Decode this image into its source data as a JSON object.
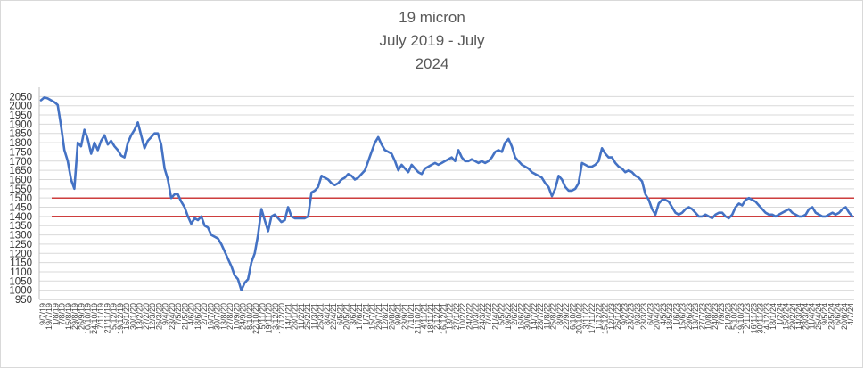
{
  "chart_data": {
    "type": "line",
    "title": [
      "19 micron",
      "July 2019 - July",
      "2024"
    ],
    "xlabel": "",
    "ylabel": "",
    "ylim": [
      950,
      2100
    ],
    "yticks": [
      950,
      1000,
      1050,
      1100,
      1150,
      1200,
      1250,
      1300,
      1350,
      1400,
      1450,
      1500,
      1550,
      1600,
      1650,
      1700,
      1750,
      1800,
      1850,
      1900,
      1950,
      2000,
      2050
    ],
    "grid": true,
    "legend": "none",
    "colors": {
      "series": "#4472c4",
      "reference_lines": "#c00000",
      "grid": "#d9d9d9"
    },
    "reference_lines": [
      {
        "y": 1500,
        "color": "#c00000"
      },
      {
        "y": 1400,
        "color": "#c00000"
      }
    ],
    "xtick_labels": [
      "9/7/19",
      "19/7/19",
      "1/8/19",
      "7/8/19",
      "15/8/19",
      "29/8/19",
      "26/9/19",
      "10/10/19",
      "24/10/19",
      "7/11/19",
      "21/11/19",
      "5/12/19",
      "19/12/19",
      "16/1/20",
      "30/1/20",
      "13/2/20",
      "27/2/20",
      "12/3/20",
      "26/3/20",
      "9/4/20",
      "23/4/20",
      "7/5/20",
      "21/5/20",
      "4/6/20",
      "18/6/20",
      "2/7/20",
      "16/7/20",
      "30/7/20",
      "13/8/20",
      "27/8/20",
      "10/9/20",
      "24/9/20",
      "8/10/20",
      "22/10/20",
      "5/11/20",
      "19/11/20",
      "3/12/20",
      "17/12/20",
      "14/1/21",
      "28/1/21",
      "11/2/21",
      "25/2/21",
      "11/3/21",
      "25/3/21",
      "8/4/21",
      "22/4/21",
      "6/5/21",
      "20/5/21",
      "3/6/21",
      "17/6/21",
      "1/7/21",
      "15/7/21",
      "29/7/21",
      "12/8/21",
      "26/8/21",
      "9/9/21",
      "23/9/21",
      "7/10/21",
      "21/10/21",
      "4/11/21",
      "18/11/21",
      "2/12/21",
      "16/12/21",
      "13/1/22",
      "27/1/22",
      "10/2/22",
      "24/2/22",
      "10/3/22",
      "24/3/22",
      "7/4/22",
      "21/4/22",
      "5/5/22",
      "19/5/22",
      "2/6/22",
      "16/6/22",
      "30/6/22",
      "14/7/22",
      "28/7/22",
      "11/8/22",
      "25/8/22",
      "8/9/22",
      "22/9/22",
      "6/10/22",
      "20/10/22",
      "3/11/22",
      "17/11/22",
      "1/12/22",
      "15/12/22",
      "12/1/23",
      "26/1/23",
      "9/2/23",
      "23/2/23",
      "9/3/23",
      "23/3/23",
      "6/4/23",
      "20/4/23",
      "4/5/23",
      "18/5/23",
      "1/6/23",
      "15/6/23",
      "29/6/23",
      "13/7/23",
      "27/7/23",
      "10/8/23",
      "24/8/23",
      "7/9/23",
      "21/9/23",
      "5/10/23",
      "19/10/23",
      "2/11/23",
      "16/11/23",
      "30/11/23",
      "14/12/23",
      "18/1/24",
      "1/2/24",
      "15/2/24",
      "29/2/24",
      "14/3/24",
      "28/3/24",
      "11/4/24",
      "25/4/24",
      "9/5/24",
      "23/5/24",
      "6/6/24",
      "20/6/24",
      "4/7/24"
    ],
    "series": [
      {
        "values": [
          2030,
          2045,
          2040,
          2030,
          2020,
          2005,
          1890,
          1760,
          1700,
          1600,
          1550,
          1800,
          1780,
          1870,
          1820,
          1740,
          1800,
          1760,
          1810,
          1840,
          1790,
          1810,
          1780,
          1760,
          1730,
          1720,
          1800,
          1840,
          1870,
          1910,
          1840,
          1770,
          1810,
          1830,
          1850,
          1850,
          1790,
          1660,
          1600,
          1500,
          1520,
          1520,
          1480,
          1450,
          1400,
          1360,
          1390,
          1380,
          1400,
          1350,
          1340,
          1300,
          1290,
          1280,
          1250,
          1210,
          1170,
          1130,
          1080,
          1060,
          1000,
          1040,
          1060,
          1150,
          1200,
          1300,
          1440,
          1380,
          1320,
          1400,
          1410,
          1390,
          1370,
          1380,
          1450,
          1400,
          1390,
          1390,
          1390,
          1390,
          1400,
          1530,
          1540,
          1560,
          1620,
          1610,
          1600,
          1580,
          1570,
          1580,
          1600,
          1610,
          1630,
          1620,
          1600,
          1610,
          1630,
          1650,
          1700,
          1750,
          1800,
          1830,
          1790,
          1760,
          1750,
          1740,
          1700,
          1650,
          1680,
          1660,
          1640,
          1680,
          1660,
          1640,
          1630,
          1660,
          1670,
          1680,
          1690,
          1680,
          1690,
          1700,
          1710,
          1720,
          1700,
          1760,
          1720,
          1700,
          1700,
          1710,
          1700,
          1690,
          1700,
          1690,
          1700,
          1720,
          1750,
          1760,
          1750,
          1800,
          1820,
          1780,
          1720,
          1700,
          1680,
          1670,
          1660,
          1640,
          1630,
          1620,
          1610,
          1580,
          1560,
          1510,
          1550,
          1620,
          1600,
          1560,
          1540,
          1540,
          1550,
          1580,
          1690,
          1680,
          1670,
          1670,
          1680,
          1700,
          1770,
          1740,
          1720,
          1720,
          1690,
          1670,
          1660,
          1640,
          1650,
          1640,
          1620,
          1610,
          1590,
          1520,
          1490,
          1440,
          1410,
          1470,
          1490,
          1490,
          1480,
          1450,
          1420,
          1410,
          1420,
          1440,
          1450,
          1440,
          1420,
          1400,
          1400,
          1410,
          1400,
          1390,
          1410,
          1420,
          1420,
          1400,
          1390,
          1410,
          1450,
          1470,
          1460,
          1490,
          1500,
          1490,
          1480,
          1460,
          1440,
          1420,
          1410,
          1410,
          1400,
          1410,
          1420,
          1430,
          1440,
          1420,
          1410,
          1400,
          1400,
          1410,
          1440,
          1450,
          1420,
          1410,
          1400,
          1400,
          1410,
          1420,
          1410,
          1420,
          1440,
          1450,
          1420,
          1400
        ]
      }
    ]
  }
}
